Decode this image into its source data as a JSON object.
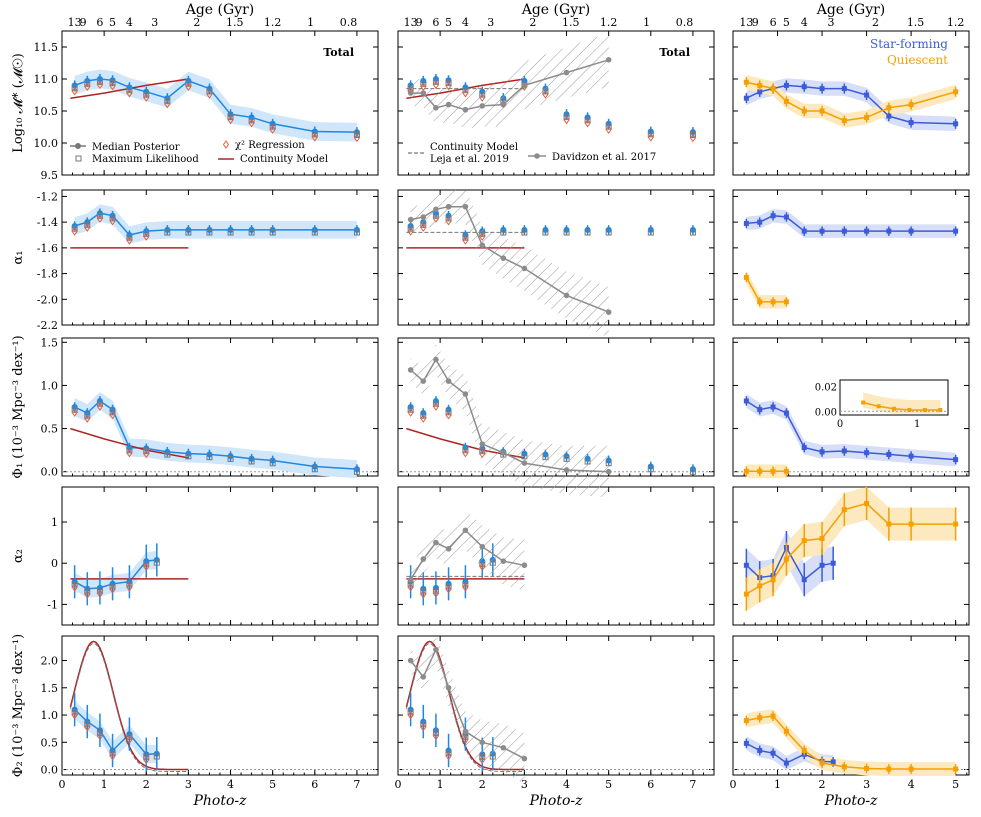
{
  "figure": {
    "age_axis_label": "Age (Gyr)",
    "x_axis_label": "Photo-z",
    "age_ticks": [
      {
        "z": 0.3,
        "label": "13"
      },
      {
        "z": 0.5,
        "label": "9"
      },
      {
        "z": 0.9,
        "label": "6"
      },
      {
        "z": 1.2,
        "label": "5"
      },
      {
        "z": 1.6,
        "label": "4"
      },
      {
        "z": 2.2,
        "label": "3"
      },
      {
        "z": 3.2,
        "label": "2"
      },
      {
        "z": 4.1,
        "label": "1.5"
      },
      {
        "z": 5.0,
        "label": "1.2"
      },
      {
        "z": 5.9,
        "label": "1"
      },
      {
        "z": 6.8,
        "label": "0.8"
      }
    ],
    "row_ylabels": [
      "Log₁₀ 𝓜* (𝓜☉)",
      "α₁",
      "Φ₁ (10⁻³ Mpc⁻³ dex⁻¹)",
      "α₂",
      "Φ₂ (10⁻³ Mpc⁻³ dex⁻¹)"
    ],
    "panel_labels": {
      "left": "Total",
      "middle": "Total"
    },
    "right_legend": [
      {
        "label": "Star-forming",
        "color": "#3b5bdb"
      },
      {
        "label": "Quiescent",
        "color": "#f5a000"
      }
    ],
    "left_legend": [
      {
        "label": "Median Posterior",
        "marker": "point-errorbar"
      },
      {
        "label": "Maximum Likelihood",
        "marker": "open-square"
      },
      {
        "label": "χ² Regression",
        "marker": "open-diamond"
      },
      {
        "label": "Continuity Model",
        "marker": "line"
      }
    ],
    "middle_legend": [
      {
        "label": "Continuity Model",
        "sublabel": "Leja et al. 2019",
        "marker": "dashed-line"
      },
      {
        "label": "Davidzon et al. 2017",
        "marker": "gray-line-point"
      }
    ],
    "colors": {
      "total": "#1e88e5",
      "total_band": "#cfe6fb",
      "continuity": "#b22222",
      "chi2": "#e8603c",
      "davidzon": "#8c8c8c",
      "sf": "#3b5bdb",
      "sf_band": "#d6def8",
      "q": "#f5a000",
      "q_band": "#fde9bf"
    }
  },
  "chart_data": [
    {
      "type": "line",
      "panel": "mstar-total",
      "x": [
        0.3,
        0.6,
        0.9,
        1.2,
        1.6,
        2.0,
        2.5,
        3.0,
        3.5,
        4.0,
        4.5,
        5.0,
        6.0,
        7.0
      ],
      "series": [
        {
          "name": "Median Posterior",
          "values": [
            10.9,
            10.97,
            11.0,
            10.98,
            10.87,
            10.8,
            10.7,
            10.97,
            10.85,
            10.45,
            10.4,
            10.3,
            10.18,
            10.17
          ]
        }
      ],
      "continuity": [
        [
          0.2,
          10.7
        ],
        [
          1.0,
          10.78
        ],
        [
          2.0,
          10.9
        ],
        [
          3.0,
          11.0
        ]
      ],
      "xlim": [
        0,
        7.5
      ],
      "ylim": [
        9.5,
        11.75
      ]
    },
    {
      "type": "line",
      "panel": "alpha1-total",
      "x": [
        0.3,
        0.6,
        0.9,
        1.2,
        1.6,
        2.0,
        2.5,
        3.0,
        3.5,
        4.0,
        4.5,
        5.0,
        6.0,
        7.0
      ],
      "series": [
        {
          "name": "Median Posterior",
          "values": [
            -1.43,
            -1.4,
            -1.33,
            -1.35,
            -1.5,
            -1.47,
            -1.46,
            -1.46,
            -1.46,
            -1.46,
            -1.46,
            -1.46,
            -1.46,
            -1.46
          ]
        }
      ],
      "continuity": [
        [
          0.2,
          -1.6
        ],
        [
          3.0,
          -1.6
        ]
      ],
      "xlim": [
        0,
        7.5
      ],
      "ylim": [
        -2.2,
        -1.15
      ]
    },
    {
      "type": "line",
      "panel": "phi1-total",
      "x": [
        0.3,
        0.6,
        0.9,
        1.2,
        1.6,
        2.0,
        2.5,
        3.0,
        3.5,
        4.0,
        4.5,
        5.0,
        6.0,
        7.0
      ],
      "series": [
        {
          "name": "Median Posterior",
          "values": [
            0.75,
            0.68,
            0.82,
            0.72,
            0.28,
            0.27,
            0.23,
            0.21,
            0.2,
            0.18,
            0.15,
            0.13,
            0.06,
            0.03
          ]
        }
      ],
      "continuity": [
        [
          0.2,
          0.5
        ],
        [
          1.0,
          0.38
        ],
        [
          2.0,
          0.25
        ],
        [
          3.0,
          0.16
        ]
      ],
      "xlim": [
        0,
        7.5
      ],
      "ylim": [
        -0.05,
        1.55
      ]
    },
    {
      "type": "line",
      "panel": "alpha2-total",
      "x": [
        0.3,
        0.6,
        0.9,
        1.2,
        1.6,
        2.0,
        2.25
      ],
      "series": [
        {
          "name": "Median Posterior",
          "values": [
            -0.45,
            -0.62,
            -0.6,
            -0.5,
            -0.45,
            0.05,
            0.08
          ]
        }
      ],
      "continuity": [
        [
          0.2,
          -0.38
        ],
        [
          3.0,
          -0.38
        ]
      ],
      "xlim": [
        0,
        7.5
      ],
      "ylim": [
        -1.5,
        1.85
      ]
    },
    {
      "type": "line",
      "panel": "phi2-total",
      "x": [
        0.3,
        0.6,
        0.9,
        1.2,
        1.6,
        2.0,
        2.25
      ],
      "series": [
        {
          "name": "Median Posterior",
          "values": [
            1.1,
            0.88,
            0.72,
            0.35,
            0.65,
            0.28,
            0.29
          ]
        }
      ],
      "xlim": [
        0,
        7.5
      ],
      "ylim": [
        -0.1,
        2.45
      ]
    },
    {
      "type": "line",
      "panel": "mstar-split",
      "x": [
        0.3,
        0.6,
        0.9,
        1.2,
        1.6,
        2.0,
        2.5,
        3.0,
        3.5,
        4.0,
        5.0
      ],
      "series": [
        {
          "name": "Star-forming",
          "values": [
            10.7,
            10.8,
            10.85,
            10.9,
            10.88,
            10.85,
            10.85,
            10.75,
            10.42,
            10.32,
            10.3
          ]
        },
        {
          "name": "Quiescent",
          "values": [
            10.95,
            10.9,
            10.85,
            10.65,
            10.5,
            10.5,
            10.35,
            10.4,
            10.55,
            10.6,
            10.8
          ]
        }
      ],
      "xlim": [
        0,
        5.3
      ],
      "ylim": [
        9.5,
        11.75
      ]
    },
    {
      "type": "line",
      "panel": "alpha1-split",
      "series": [
        {
          "name": "Star-forming",
          "x": [
            0.3,
            0.6,
            0.9,
            1.2,
            1.6,
            2.0,
            2.5,
            3.0,
            3.5,
            4.0,
            5.0
          ],
          "values": [
            -1.41,
            -1.4,
            -1.35,
            -1.36,
            -1.47,
            -1.47,
            -1.47,
            -1.47,
            -1.47,
            -1.47,
            -1.47
          ]
        },
        {
          "name": "Quiescent",
          "x": [
            0.3,
            0.6,
            0.9,
            1.2
          ],
          "values": [
            -1.83,
            -2.02,
            -2.02,
            -2.02
          ]
        }
      ],
      "xlim": [
        0,
        5.3
      ],
      "ylim": [
        -2.2,
        -1.15
      ]
    },
    {
      "type": "line",
      "panel": "phi1-split",
      "series": [
        {
          "name": "Star-forming",
          "x": [
            0.3,
            0.6,
            0.9,
            1.2,
            1.6,
            2.0,
            2.5,
            3.0,
            3.5,
            4.0,
            5.0
          ],
          "values": [
            0.82,
            0.72,
            0.75,
            0.68,
            0.28,
            0.23,
            0.24,
            0.22,
            0.2,
            0.18,
            0.14
          ]
        },
        {
          "name": "Quiescent",
          "x": [
            0.3,
            0.6,
            0.9,
            1.2
          ],
          "values": [
            0.005,
            0.005,
            0.004,
            0.004
          ]
        }
      ],
      "inset": {
        "x": [
          0.3,
          0.5,
          0.7,
          0.9,
          1.1,
          1.3
        ],
        "q": [
          0.007,
          0.004,
          0.002,
          0.001,
          0.001,
          0.001
        ],
        "xlim": [
          0,
          1.4
        ],
        "ylim": [
          -0.003,
          0.025
        ],
        "ticks_y": [
          "0.00",
          "0.02"
        ],
        "ticks_x": [
          "0",
          "1"
        ]
      },
      "xlim": [
        0,
        5.3
      ],
      "ylim": [
        -0.05,
        1.55
      ]
    },
    {
      "type": "line",
      "panel": "alpha2-split",
      "series": [
        {
          "name": "Star-forming",
          "x": [
            0.3,
            0.6,
            0.9,
            1.2,
            1.6,
            2.0,
            2.25
          ],
          "values": [
            -0.05,
            -0.35,
            -0.3,
            0.38,
            -0.4,
            -0.05,
            0.0
          ]
        },
        {
          "name": "Quiescent",
          "x": [
            0.3,
            0.6,
            0.9,
            1.2,
            1.6,
            2.0,
            2.5,
            3.0,
            3.5,
            4.0,
            5.0
          ],
          "values": [
            -0.75,
            -0.55,
            -0.4,
            0.1,
            0.55,
            0.6,
            1.3,
            1.45,
            0.95,
            0.95,
            0.95
          ]
        }
      ],
      "xlim": [
        0,
        5.3
      ],
      "ylim": [
        -1.5,
        1.85
      ]
    },
    {
      "type": "line",
      "panel": "phi2-split",
      "series": [
        {
          "name": "Star-forming",
          "x": [
            0.3,
            0.6,
            0.9,
            1.2,
            1.6,
            2.0,
            2.25
          ],
          "values": [
            0.48,
            0.35,
            0.3,
            0.12,
            0.28,
            0.15,
            0.14
          ]
        },
        {
          "name": "Quiescent",
          "x": [
            0.3,
            0.6,
            0.9,
            1.2,
            1.6,
            2.0,
            2.5,
            3.0,
            3.5,
            4.0,
            5.0
          ],
          "values": [
            0.9,
            0.95,
            0.98,
            0.7,
            0.35,
            0.12,
            0.05,
            0.02,
            0.01,
            0.01,
            0.01
          ]
        }
      ],
      "xlim": [
        0,
        5.3
      ],
      "ylim": [
        -0.1,
        2.45
      ]
    }
  ]
}
